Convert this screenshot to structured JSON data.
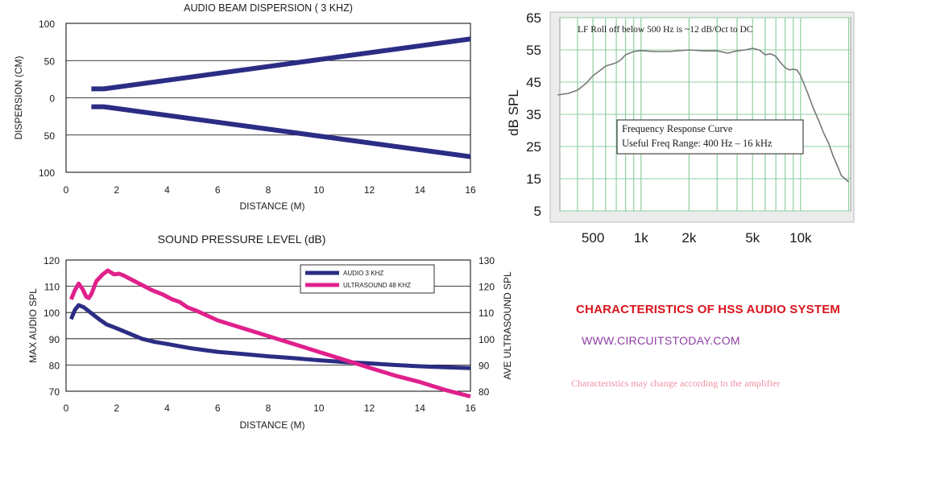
{
  "colors": {
    "audio": "#2b2d84",
    "ultrasound": "#e0208c",
    "fr_grid": "#8fcfa0",
    "fr_curve": "#777777",
    "heading": "#d9141c",
    "site": "#8e3fa3",
    "note": "#f08fa0"
  },
  "text": {
    "heading": "CHARACTERISTICS OF HSS AUDIO SYSTEM",
    "site": "WWW.CIRCUITSTODAY.COM",
    "note": "Characteristics may change according to the amplifier"
  },
  "chart_data": [
    {
      "type": "line",
      "title": "AUDIO BEAM DISPERSION ( 3 KHZ)",
      "xlabel": "DISTANCE (M)",
      "ylabel": "DISPERSION (CM)",
      "xlim": [
        0,
        16
      ],
      "ylim": [
        -100,
        100
      ],
      "x_ticks": [
        "0",
        "2",
        "4",
        "6",
        "8",
        "10",
        "12",
        "14",
        "16"
      ],
      "y_ticks": [
        "100",
        "50",
        "0",
        "50",
        "100"
      ],
      "grid": "horizontal",
      "series": [
        {
          "x": [
            1,
            1.5,
            16
          ],
          "y": [
            12,
            12,
            79
          ]
        },
        {
          "x": [
            1,
            1.5,
            16
          ],
          "y": [
            -12,
            -12,
            -79
          ]
        }
      ]
    },
    {
      "type": "line",
      "title": "SOUND PRESSURE LEVEL (dB)",
      "xlabel": "DISTANCE (M)",
      "ylabel": "MAX AUDIO SPL",
      "ylabel_right": "AVE ULTRASOUND SPL",
      "xlim": [
        0,
        16
      ],
      "ylim": [
        70,
        120
      ],
      "ylim_right": [
        80,
        130
      ],
      "x_ticks": [
        "0",
        "2",
        "4",
        "6",
        "8",
        "10",
        "12",
        "14",
        "16"
      ],
      "y_ticks": [
        "70",
        "80",
        "90",
        "100",
        "110",
        "120"
      ],
      "y_ticks_right": [
        "80",
        "90",
        "100",
        "110",
        "120",
        "130"
      ],
      "grid": "horizontal",
      "legend": "top-right",
      "series": [
        {
          "name": "AUDIO 3 KHZ",
          "axis": "left",
          "x": [
            0.2,
            0.35,
            0.5,
            0.7,
            0.9,
            1.1,
            1.3,
            1.6,
            2.0,
            2.5,
            3.0,
            3.5,
            4.0,
            5.0,
            6.0,
            7.0,
            8.0,
            9.0,
            10.0,
            11.0,
            12.0,
            13.0,
            14.0,
            15.0,
            16.0
          ],
          "y": [
            97.5,
            101,
            102.8,
            102,
            100.5,
            99,
            97.5,
            95.5,
            94,
            92,
            90,
            88.8,
            88,
            86.3,
            85,
            84.2,
            83.3,
            82.6,
            81.8,
            81.1,
            80.6,
            80,
            79.5,
            79.1,
            78.8
          ]
        },
        {
          "name": "ULTRASOUND 48 KHZ",
          "axis": "right",
          "x": [
            0.2,
            0.35,
            0.5,
            0.65,
            0.8,
            0.9,
            1.0,
            1.2,
            1.45,
            1.65,
            1.9,
            2.1,
            2.3,
            2.6,
            3.0,
            3.4,
            3.8,
            4.2,
            4.5,
            4.8,
            5.2,
            6.0,
            7.0,
            8.0,
            9.0,
            10.0,
            11.0,
            12.0,
            13.0,
            14.0,
            15.0,
            16.0
          ],
          "y": [
            115,
            118.5,
            121,
            119,
            116,
            115.5,
            117,
            122,
            124.5,
            126,
            124.5,
            124.8,
            124,
            122.5,
            120.5,
            118.5,
            117,
            115,
            114,
            112,
            110.5,
            107,
            104,
            101,
            98,
            95,
            92,
            89,
            86,
            83.5,
            80.5,
            78
          ]
        }
      ]
    },
    {
      "type": "line",
      "title": "",
      "ylabel": "dB SPL",
      "ylim": [
        5,
        65
      ],
      "y_ticks": [
        "65",
        "55",
        "45",
        "35",
        "25",
        "15",
        "5"
      ],
      "x_ticks": [
        "500",
        "1k",
        "2k",
        "5k",
        "10k"
      ],
      "x_scale": "log",
      "grid": "both",
      "annotations": [
        "LF Roll off below 500 Hz is ~12 dB/Oct to DC",
        "Frequency Response Curve",
        "Useful Freq Range: 400 Hz – 16 kHz"
      ],
      "series": [
        {
          "x": [
            300,
            350,
            400,
            450,
            500,
            550,
            600,
            650,
            700,
            750,
            800,
            900,
            1000,
            1200,
            1500,
            2000,
            2500,
            3000,
            3500,
            4000,
            4500,
            5000,
            5500,
            6000,
            6500,
            7000,
            7500,
            8000,
            8500,
            9000,
            9500,
            10000,
            11000,
            12000,
            13000,
            14000,
            15000,
            16000,
            17000,
            18000,
            20000
          ],
          "y": [
            41,
            41.5,
            42.5,
            44.5,
            47,
            48.5,
            50,
            50.5,
            51,
            52,
            53.5,
            54.5,
            54.8,
            54.5,
            54.5,
            55,
            54.7,
            54.7,
            54,
            54.7,
            55,
            55.5,
            55,
            53.5,
            53.8,
            53,
            51,
            49.5,
            48.8,
            49,
            48.8,
            47,
            42,
            37,
            33,
            29,
            26,
            22,
            19,
            16,
            14
          ]
        }
      ]
    }
  ]
}
